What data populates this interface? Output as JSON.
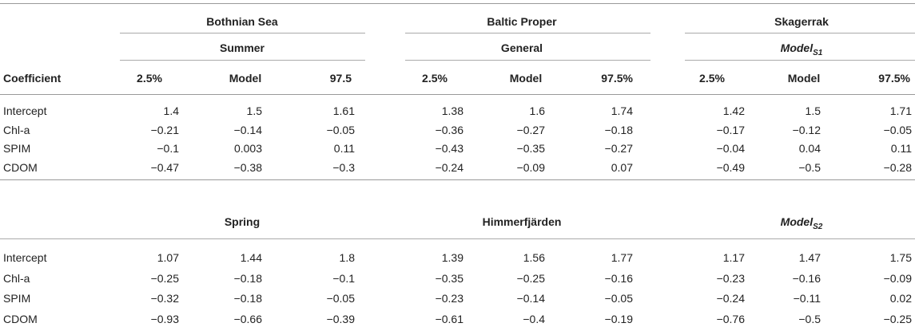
{
  "regions": [
    "Bothnian Sea",
    "Baltic Proper",
    "Skagerrak"
  ],
  "header": {
    "coefficient": "Coefficient",
    "groups_top": [
      {
        "label": "Summer",
        "italic": false,
        "sub": ""
      },
      {
        "label": "General",
        "italic": false,
        "sub": ""
      },
      {
        "label": "Model",
        "italic": true,
        "sub": "S1"
      }
    ],
    "cols": [
      [
        "2.5%",
        "Model",
        "97.5"
      ],
      [
        "2.5%",
        "Model",
        "97.5%"
      ],
      [
        "2.5%",
        "Model",
        "97.5%"
      ]
    ]
  },
  "section1": {
    "rows": [
      {
        "name": "Intercept",
        "values": [
          "1.4",
          "1.5",
          "1.61",
          "1.38",
          "1.6",
          "1.74",
          "1.42",
          "1.5",
          "1.71"
        ]
      },
      {
        "name": "Chl-a",
        "values": [
          "−0.21",
          "−0.14",
          "−0.05",
          "−0.36",
          "−0.27",
          "−0.18",
          "−0.17",
          "−0.12",
          "−0.05"
        ]
      },
      {
        "name": "SPIM",
        "values": [
          "−0.1",
          "0.003",
          "0.11",
          "−0.43",
          "−0.35",
          "−0.27",
          "−0.04",
          "0.04",
          "0.11"
        ]
      },
      {
        "name": "CDOM",
        "values": [
          "−0.47",
          "−0.38",
          "−0.3",
          "−0.24",
          "−0.09",
          "0.07",
          "−0.49",
          "−0.5",
          "−0.28"
        ]
      }
    ]
  },
  "section2": {
    "groups": [
      {
        "label": "Spring",
        "italic": false,
        "sub": ""
      },
      {
        "label": "Himmerfjärden",
        "italic": false,
        "sub": ""
      },
      {
        "label": "Model",
        "italic": true,
        "sub": "S2"
      }
    ],
    "rows": [
      {
        "name": "Intercept",
        "values": [
          "1.07",
          "1.44",
          "1.8",
          "1.39",
          "1.56",
          "1.77",
          "1.17",
          "1.47",
          "1.75"
        ]
      },
      {
        "name": "Chl-a",
        "values": [
          "−0.25",
          "−0.18",
          "−0.1",
          "−0.35",
          "−0.25",
          "−0.16",
          "−0.23",
          "−0.16",
          "−0.09"
        ]
      },
      {
        "name": "SPIM",
        "values": [
          "−0.32",
          "−0.18",
          "−0.05",
          "−0.23",
          "−0.14",
          "−0.05",
          "−0.24",
          "−0.11",
          "0.02"
        ]
      },
      {
        "name": "CDOM",
        "values": [
          "−0.93",
          "−0.66",
          "−0.39",
          "−0.61",
          "−0.4",
          "−0.19",
          "−0.76",
          "−0.5",
          "−0.25"
        ]
      }
    ]
  }
}
